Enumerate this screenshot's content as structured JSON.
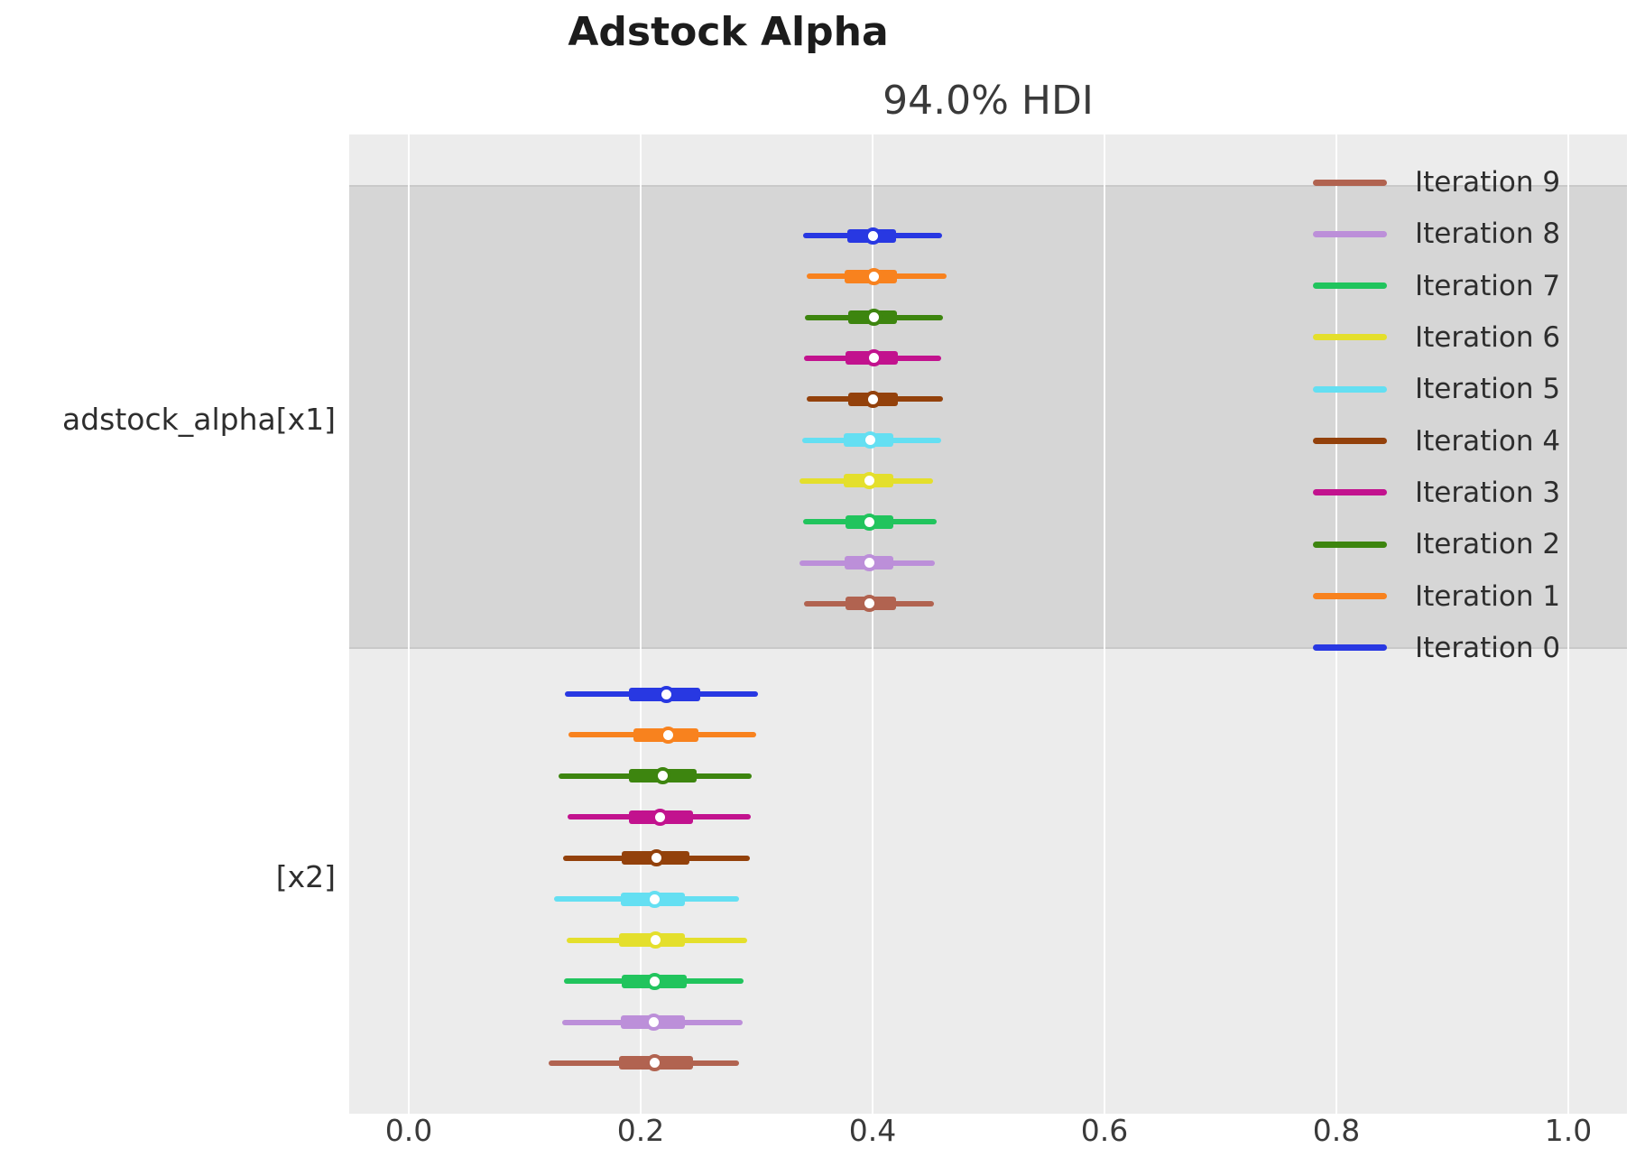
{
  "figure": {
    "title": "Adstock Alpha",
    "subtitle": "94.0% HDI"
  },
  "chart_data": {
    "type": "forest",
    "title": "Adstock Alpha",
    "subtitle": "94.0% HDI",
    "hdi_probability": "94.0%",
    "x_axis": {
      "tick_labels": [
        "0.0",
        "0.2",
        "0.4",
        "0.6",
        "0.8",
        "1.0"
      ],
      "tick_values": [
        0.0,
        0.2,
        0.4,
        0.6,
        0.8,
        1.0
      ],
      "lim": [
        -0.051,
        1.051
      ],
      "grid": true
    },
    "plot_bg_color": "#ececec",
    "band_color": "#d6d6d6",
    "legend_position": "upper right",
    "legend": [
      {
        "label": "Iteration 9",
        "color": "#b16350"
      },
      {
        "label": "Iteration 8",
        "color": "#bc8fd9"
      },
      {
        "label": "Iteration 7",
        "color": "#21c45d"
      },
      {
        "label": "Iteration 6",
        "color": "#e4df2c"
      },
      {
        "label": "Iteration 5",
        "color": "#64dff2"
      },
      {
        "label": "Iteration 4",
        "color": "#93410b"
      },
      {
        "label": "Iteration 3",
        "color": "#c2128e"
      },
      {
        "label": "Iteration 2",
        "color": "#3d850f"
      },
      {
        "label": "Iteration 1",
        "color": "#f8821e"
      },
      {
        "label": "Iteration 0",
        "color": "#2838e2"
      }
    ],
    "groups": [
      {
        "label": "adstock_alpha[x1]",
        "shaded_band": true,
        "rows": [
          {
            "name": "Iteration 0",
            "color": "#2838e2",
            "hdi_lo": 0.34,
            "iqr_lo": 0.378,
            "median": 0.4,
            "iqr_hi": 0.42,
            "hdi_hi": 0.46
          },
          {
            "name": "Iteration 1",
            "color": "#f8821e",
            "hdi_lo": 0.343,
            "iqr_lo": 0.376,
            "median": 0.401,
            "iqr_hi": 0.421,
            "hdi_hi": 0.464
          },
          {
            "name": "Iteration 2",
            "color": "#3d850f",
            "hdi_lo": 0.342,
            "iqr_lo": 0.379,
            "median": 0.401,
            "iqr_hi": 0.421,
            "hdi_hi": 0.461
          },
          {
            "name": "Iteration 3",
            "color": "#c2128e",
            "hdi_lo": 0.341,
            "iqr_lo": 0.377,
            "median": 0.401,
            "iqr_hi": 0.422,
            "hdi_hi": 0.459
          },
          {
            "name": "Iteration 4",
            "color": "#93410b",
            "hdi_lo": 0.343,
            "iqr_lo": 0.379,
            "median": 0.4,
            "iqr_hi": 0.422,
            "hdi_hi": 0.461
          },
          {
            "name": "Iteration 5",
            "color": "#64dff2",
            "hdi_lo": 0.339,
            "iqr_lo": 0.375,
            "median": 0.398,
            "iqr_hi": 0.418,
            "hdi_hi": 0.459
          },
          {
            "name": "Iteration 6",
            "color": "#e4df2c",
            "hdi_lo": 0.337,
            "iqr_lo": 0.375,
            "median": 0.397,
            "iqr_hi": 0.418,
            "hdi_hi": 0.452
          },
          {
            "name": "Iteration 7",
            "color": "#21c45d",
            "hdi_lo": 0.34,
            "iqr_lo": 0.377,
            "median": 0.397,
            "iqr_hi": 0.418,
            "hdi_hi": 0.455
          },
          {
            "name": "Iteration 8",
            "color": "#bc8fd9",
            "hdi_lo": 0.337,
            "iqr_lo": 0.376,
            "median": 0.397,
            "iqr_hi": 0.418,
            "hdi_hi": 0.454
          },
          {
            "name": "Iteration 9",
            "color": "#b16350",
            "hdi_lo": 0.341,
            "iqr_lo": 0.377,
            "median": 0.397,
            "iqr_hi": 0.42,
            "hdi_hi": 0.453
          }
        ]
      },
      {
        "label": "[x2]",
        "shaded_band": false,
        "rows": [
          {
            "name": "Iteration 0",
            "color": "#2838e2",
            "hdi_lo": 0.135,
            "iqr_lo": 0.19,
            "median": 0.222,
            "iqr_hi": 0.251,
            "hdi_hi": 0.301
          },
          {
            "name": "Iteration 1",
            "color": "#f8821e",
            "hdi_lo": 0.138,
            "iqr_lo": 0.194,
            "median": 0.224,
            "iqr_hi": 0.25,
            "hdi_hi": 0.3
          },
          {
            "name": "Iteration 2",
            "color": "#3d850f",
            "hdi_lo": 0.129,
            "iqr_lo": 0.19,
            "median": 0.219,
            "iqr_hi": 0.248,
            "hdi_hi": 0.296
          },
          {
            "name": "Iteration 3",
            "color": "#c2128e",
            "hdi_lo": 0.137,
            "iqr_lo": 0.19,
            "median": 0.217,
            "iqr_hi": 0.245,
            "hdi_hi": 0.295
          },
          {
            "name": "Iteration 4",
            "color": "#93410b",
            "hdi_lo": 0.133,
            "iqr_lo": 0.184,
            "median": 0.214,
            "iqr_hi": 0.242,
            "hdi_hi": 0.294
          },
          {
            "name": "Iteration 5",
            "color": "#64dff2",
            "hdi_lo": 0.125,
            "iqr_lo": 0.183,
            "median": 0.212,
            "iqr_hi": 0.238,
            "hdi_hi": 0.285
          },
          {
            "name": "Iteration 6",
            "color": "#e4df2c",
            "hdi_lo": 0.136,
            "iqr_lo": 0.181,
            "median": 0.213,
            "iqr_hi": 0.238,
            "hdi_hi": 0.292
          },
          {
            "name": "Iteration 7",
            "color": "#21c45d",
            "hdi_lo": 0.134,
            "iqr_lo": 0.184,
            "median": 0.212,
            "iqr_hi": 0.24,
            "hdi_hi": 0.289
          },
          {
            "name": "Iteration 8",
            "color": "#bc8fd9",
            "hdi_lo": 0.132,
            "iqr_lo": 0.183,
            "median": 0.211,
            "iqr_hi": 0.238,
            "hdi_hi": 0.288
          },
          {
            "name": "Iteration 9",
            "color": "#b16350",
            "hdi_lo": 0.121,
            "iqr_lo": 0.181,
            "median": 0.212,
            "iqr_hi": 0.245,
            "hdi_hi": 0.285
          }
        ]
      }
    ]
  }
}
